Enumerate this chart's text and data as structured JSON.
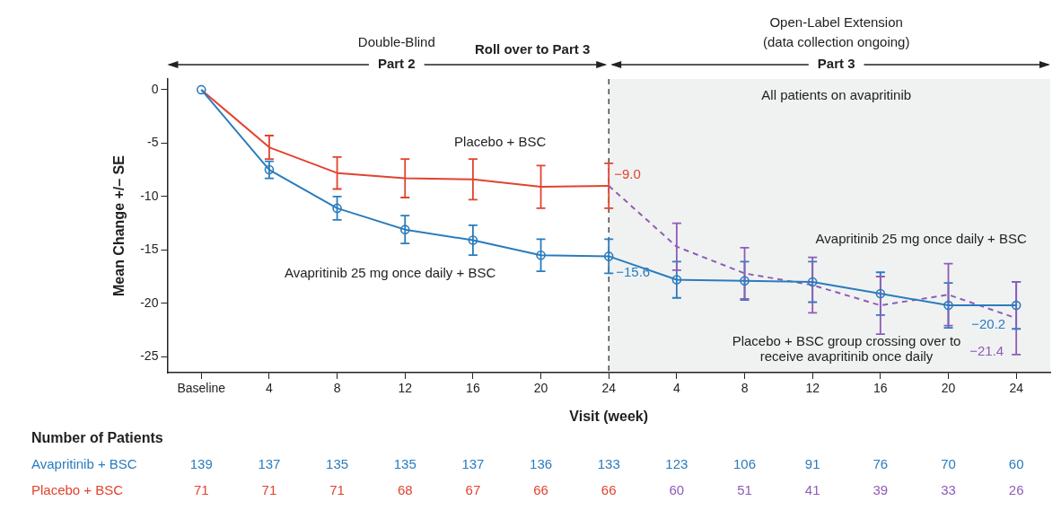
{
  "chart_data": {
    "type": "line",
    "xlabel": "Visit (week)",
    "ylabel": "Mean Change +/– SE",
    "categories": [
      "Baseline",
      "4",
      "8",
      "12",
      "16",
      "20",
      "24",
      "4",
      "8",
      "12",
      "16",
      "20",
      "24"
    ],
    "ylim": [
      -26.5,
      1
    ],
    "yticks": [
      -25,
      -20,
      -15,
      -10,
      -5,
      0
    ],
    "grid": false,
    "legend": false,
    "series": [
      {
        "name": "Avapritinib 25 mg once daily + BSC",
        "color": "#2a7cbd",
        "marker": "circle",
        "line_style": "solid",
        "values": [
          0,
          -7.5,
          -11.1,
          -13.1,
          -14.1,
          -15.5,
          -15.6,
          -17.8,
          -17.9,
          -18.0,
          -19.1,
          -20.2,
          -20.2
        ],
        "errors": [
          null,
          0.8,
          1.1,
          1.3,
          1.4,
          1.5,
          1.6,
          1.7,
          1.8,
          1.9,
          2.0,
          2.1,
          2.2
        ],
        "value_labels": [
          null,
          null,
          null,
          null,
          null,
          null,
          "−15.6",
          null,
          null,
          null,
          null,
          null,
          "−20.2"
        ]
      },
      {
        "name": "Placebo + BSC",
        "color": "#e2432f",
        "marker": "none",
        "line_style": "solid",
        "values": [
          0,
          -5.4,
          -7.8,
          -8.3,
          -8.4,
          -9.1,
          -9.0,
          null,
          null,
          null,
          null,
          null,
          null
        ],
        "errors": [
          null,
          1.1,
          1.5,
          1.8,
          1.9,
          2.0,
          2.1,
          null,
          null,
          null,
          null,
          null,
          null
        ],
        "value_labels": [
          null,
          null,
          null,
          null,
          null,
          null,
          "−9.0",
          null,
          null,
          null,
          null,
          null,
          null
        ]
      },
      {
        "color": "#8e5cb6",
        "marker": "none",
        "line_style": "dashed",
        "values": [
          null,
          null,
          null,
          null,
          null,
          null,
          -9.0,
          -14.7,
          -17.2,
          -18.3,
          -20.2,
          -19.2,
          -21.4
        ],
        "errors": [
          null,
          null,
          null,
          null,
          null,
          null,
          null,
          2.2,
          2.4,
          2.6,
          2.7,
          2.9,
          3.4
        ],
        "value_labels": [
          null,
          null,
          null,
          null,
          null,
          null,
          null,
          null,
          null,
          null,
          null,
          null,
          "−21.4"
        ]
      }
    ],
    "ref_lines": [
      {
        "axis": "x",
        "value": "24",
        "color": "#222222",
        "line_style": "dashed"
      }
    ],
    "annotations": [
      "Double-Blind",
      "Part 2",
      "Roll over to Part 3",
      "Open-Label Extension",
      "(data collection ongoing)",
      "Part 3",
      "All patients on avapritinib",
      "Avapritinib 25 mg once daily + BSC",
      "Placebo + BSC group crossing over to receive avapritinib once daily",
      "Number of Patients",
      "Avapritinib + BSC",
      "139",
      "137",
      "135",
      "135",
      "137",
      "136",
      "133",
      "123",
      "106",
      "91",
      "76",
      "70",
      "60",
      "Placebo + BSC",
      "71",
      "71",
      "71",
      "68",
      "67",
      "66",
      "66",
      "60",
      "51",
      "41",
      "39",
      "33",
      "26"
    ]
  }
}
